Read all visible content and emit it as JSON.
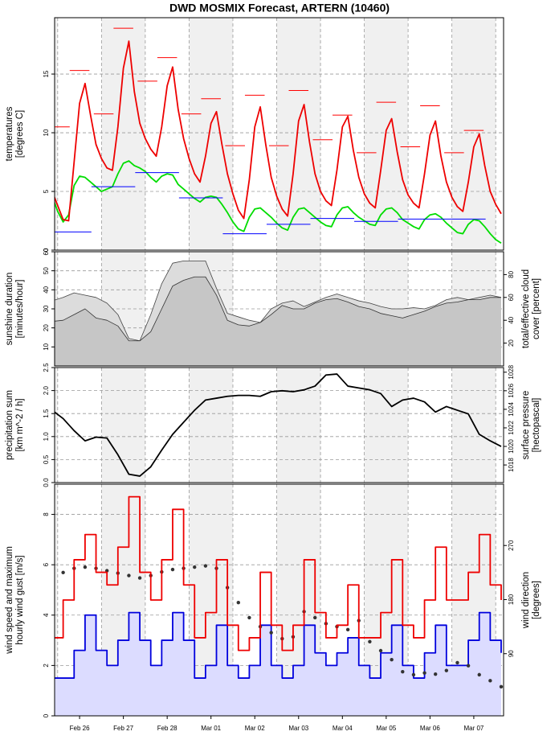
{
  "chart_data": [
    {
      "type": "line",
      "title": "DWD MOSMIX Forecast, ARTERN (10460)",
      "ylabel": [
        "temperatures",
        "[degrees C]"
      ],
      "xlim": [
        -0.07,
        10.18
      ],
      "ylim": [
        0,
        19.8
      ],
      "yticks": [
        0,
        5,
        10,
        15
      ],
      "grid": true,
      "x": [
        -0.125,
        0,
        0.125,
        0.25,
        0.375,
        0.5,
        0.625,
        0.75,
        0.875,
        1,
        1.125,
        1.25,
        1.375,
        1.5,
        1.625,
        1.75,
        1.875,
        2,
        2.125,
        2.25,
        2.375,
        2.5,
        2.625,
        2.75,
        2.875,
        3,
        3.125,
        3.25,
        3.375,
        3.5,
        3.625,
        3.75,
        3.875,
        4,
        4.125,
        4.25,
        4.375,
        4.5,
        4.625,
        4.75,
        4.875,
        5,
        5.125,
        5.25,
        5.375,
        5.5,
        5.625,
        5.75,
        5.875,
        6,
        6.125,
        6.25,
        6.375,
        6.5,
        6.625,
        6.75,
        6.875,
        7,
        7.125,
        7.25,
        7.375,
        7.5,
        7.625,
        7.75,
        7.875,
        8,
        8.125,
        8.25,
        8.375,
        8.5,
        8.625,
        8.75,
        8.875,
        9,
        9.125,
        9.25,
        9.375,
        9.5,
        9.625,
        9.75,
        9.875,
        10,
        10.125
      ],
      "series": [
        {
          "color": "#00dd00",
          "values": [
            4.6,
            3.3,
            2.4,
            3.0,
            5.5,
            6.3,
            6.2,
            5.8,
            5.4,
            5.0,
            5.2,
            5.4,
            6.5,
            7.4,
            7.6,
            7.2,
            7.0,
            6.7,
            6.2,
            5.8,
            6.3,
            6.5,
            6.4,
            5.6,
            5.2,
            4.8,
            4.4,
            4.1,
            4.5,
            4.6,
            4.5,
            3.9,
            3.2,
            2.4,
            1.8,
            1.6,
            2.8,
            3.5,
            3.6,
            3.2,
            2.8,
            2.3,
            1.9,
            1.7,
            2.8,
            3.5,
            3.6,
            3.2,
            2.8,
            2.4,
            2.1,
            2.0,
            3.0,
            3.6,
            3.7,
            3.2,
            2.8,
            2.5,
            2.2,
            2.1,
            3.0,
            3.5,
            3.6,
            3.2,
            2.6,
            2.3,
            2.0,
            1.8,
            2.6,
            3.0,
            3.1,
            2.8,
            2.3,
            1.9,
            1.5,
            1.4,
            2.2,
            2.6,
            2.5,
            2.0,
            1.4,
            0.9,
            0.6
          ]
        },
        {
          "color": "#ee0000",
          "values": [
            5.0,
            3.8,
            2.6,
            2.5,
            7.5,
            12.5,
            14.2,
            11.5,
            9.0,
            7.8,
            7.0,
            6.8,
            10.5,
            15.5,
            17.8,
            13.5,
            10.8,
            9.5,
            8.6,
            8.0,
            10.5,
            14.0,
            15.6,
            12.0,
            9.5,
            7.8,
            6.5,
            5.8,
            8.0,
            10.8,
            11.8,
            9.0,
            6.5,
            4.8,
            3.4,
            2.7,
            6.0,
            10.5,
            12.2,
            9.0,
            6.2,
            4.6,
            3.5,
            2.9,
            6.5,
            11.0,
            12.4,
            9.2,
            6.5,
            5.0,
            4.2,
            3.8,
            6.8,
            10.5,
            11.4,
            8.5,
            6.2,
            4.8,
            4.0,
            3.6,
            6.8,
            10.2,
            11.2,
            8.4,
            6.0,
            4.7,
            4.0,
            3.6,
            6.5,
            9.8,
            11.0,
            8.0,
            5.8,
            4.5,
            3.7,
            3.3,
            5.8,
            8.8,
            9.9,
            7.2,
            5.0,
            3.9,
            3.1
          ]
        },
        {
          "color": "#ff0000",
          "style": "dash",
          "x": [
            0.05,
            0.5,
            1.05,
            1.5,
            2.05,
            2.5,
            3.05,
            3.5,
            4.05,
            4.5,
            5.05,
            5.5,
            6.05,
            6.5,
            7.05,
            7.5,
            8.05,
            8.5,
            9.05,
            9.5
          ],
          "values": [
            10.5,
            15.3,
            11.6,
            18.9,
            14.4,
            16.4,
            11.6,
            12.9,
            8.9,
            13.2,
            8.9,
            13.6,
            9.4,
            11.5,
            8.3,
            12.6,
            8.8,
            12.3,
            8.3,
            10.2
          ]
        },
        {
          "color": "#0000ff",
          "style": "dash",
          "x": [
            0.27,
            1.27,
            2.27,
            3.27,
            4.27,
            5.27,
            6.27,
            7.27,
            8.27,
            9.27
          ],
          "values": [
            1.55,
            5.4,
            6.6,
            4.45,
            1.4,
            2.2,
            2.7,
            2.45,
            2.65,
            2.65
          ]
        }
      ]
    },
    {
      "type": "line",
      "ylabel": [
        "sunshine duration",
        "[minutes/hour]"
      ],
      "y2label": [
        "total/effective cloud",
        "cover [percent]"
      ],
      "xlim": [
        -0.07,
        10.18
      ],
      "ylim": [
        0,
        60
      ],
      "yticks": [
        10,
        20,
        30,
        40,
        50,
        60
      ],
      "grid": true,
      "y2lim": [
        0,
        100
      ],
      "y2ticks": [
        20,
        40,
        60,
        80
      ],
      "x": [
        -0.125,
        0.125,
        0.375,
        0.625,
        0.875,
        1.125,
        1.375,
        1.625,
        1.875,
        2.125,
        2.375,
        2.625,
        2.875,
        3.125,
        3.375,
        3.625,
        3.875,
        4.125,
        4.375,
        4.625,
        4.875,
        5.125,
        5.375,
        5.625,
        5.875,
        6.125,
        6.375,
        6.625,
        6.875,
        7.125,
        7.375,
        7.625,
        7.875,
        8.125,
        8.375,
        8.625,
        8.875,
        9.125,
        9.375,
        9.625,
        9.875,
        10.125
      ],
      "series": [
        {
          "color": "#444444",
          "fill": "#dcdcdc",
          "axis": "y2",
          "values": [
            57,
            60,
            64,
            62,
            60,
            55,
            45,
            24,
            22,
            45,
            72,
            90,
            92,
            92,
            92,
            68,
            46,
            43,
            40,
            38,
            50,
            55,
            57,
            52,
            56,
            60,
            63,
            60,
            57,
            55,
            52,
            50,
            50,
            51,
            50,
            53,
            58,
            60,
            58,
            60,
            62,
            60
          ]
        },
        {
          "color": "#333333",
          "fill": "#c6c6c6",
          "axis": "y2",
          "values": [
            39,
            40,
            45,
            50,
            42,
            40,
            35,
            22,
            22,
            30,
            50,
            70,
            75,
            78,
            78,
            62,
            40,
            36,
            35,
            38,
            45,
            53,
            50,
            50,
            55,
            58,
            59,
            56,
            52,
            50,
            46,
            44,
            42,
            45,
            48,
            52,
            55,
            56,
            58,
            58,
            60,
            60
          ]
        }
      ]
    },
    {
      "type": "line",
      "ylabel": [
        "precipitation sum",
        "[km m^-2 / h]"
      ],
      "y2label": [
        "surface pressure",
        "[hectopascal]"
      ],
      "xlim": [
        -0.07,
        10.18
      ],
      "ylim": [
        0,
        2.5
      ],
      "yticks": [
        {
          "value": 0,
          "label": "0.0"
        },
        0.5,
        {
          "value": 1,
          "label": "1.0"
        },
        1.5,
        {
          "value": 2,
          "label": "2.0"
        },
        2.5
      ],
      "grid": true,
      "y2lim": [
        1016.1,
        1028.5
      ],
      "y2ticks": [
        1018,
        1020,
        1022,
        1024,
        1026,
        1028
      ],
      "x": [
        -0.125,
        0.125,
        0.375,
        0.625,
        0.875,
        1.125,
        1.375,
        1.625,
        1.875,
        2.125,
        2.375,
        2.625,
        2.875,
        3.125,
        3.375,
        3.625,
        3.875,
        4.125,
        4.375,
        4.625,
        4.875,
        5.125,
        5.375,
        5.625,
        5.875,
        6.125,
        6.375,
        6.625,
        6.875,
        7.125,
        7.375,
        7.625,
        7.875,
        8.125,
        8.375,
        8.625,
        8.875,
        9.125,
        9.375,
        9.625,
        9.875,
        10.125
      ],
      "series": [
        {
          "color": "#000000",
          "axis": "y2",
          "values": [
            1023.9,
            1023.0,
            1021.7,
            1020.6,
            1021.0,
            1020.9,
            1019.1,
            1017.0,
            1016.8,
            1017.8,
            1019.6,
            1021.3,
            1022.6,
            1023.9,
            1025.0,
            1025.2,
            1025.4,
            1025.5,
            1025.5,
            1025.4,
            1025.9,
            1026.0,
            1025.9,
            1026.1,
            1026.5,
            1027.7,
            1027.8,
            1026.5,
            1026.3,
            1026.1,
            1025.7,
            1024.3,
            1025.0,
            1025.2,
            1024.8,
            1023.7,
            1024.3,
            1023.9,
            1023.5,
            1021.3,
            1020.6,
            1020.0
          ]
        }
      ]
    },
    {
      "type": "line",
      "ylabel": [
        "wind speed and maximum",
        "hourly wind gust [m/s]"
      ],
      "y2label": [
        "wind direction",
        "[degrees]"
      ],
      "xlim": [
        -0.07,
        10.18
      ],
      "ylim": [
        0,
        9.2
      ],
      "yticks": [
        0,
        2,
        4,
        6,
        8
      ],
      "grid": true,
      "y2lim": [
        -13.4,
        372
      ],
      "y2ticks": [
        90,
        180,
        270
      ],
      "xticks": [
        {
          "value": 0.5,
          "label": "Feb 26"
        },
        {
          "value": 1.5,
          "label": "Feb 27"
        },
        {
          "value": 2.5,
          "label": "Feb 28"
        },
        {
          "value": 3.5,
          "label": "Mar 01"
        },
        {
          "value": 4.5,
          "label": "Mar 02"
        },
        {
          "value": 5.5,
          "label": "Mar 03"
        },
        {
          "value": 6.5,
          "label": "Mar 04"
        },
        {
          "value": 7.5,
          "label": "Mar 05"
        },
        {
          "value": 8.5,
          "label": "Mar 06"
        },
        {
          "value": 9.5,
          "label": "Mar 07"
        }
      ],
      "x": [
        -0.125,
        0.125,
        0.375,
        0.625,
        0.875,
        1.125,
        1.375,
        1.625,
        1.875,
        2.125,
        2.375,
        2.625,
        2.875,
        3.125,
        3.375,
        3.625,
        3.875,
        4.125,
        4.375,
        4.625,
        4.875,
        5.125,
        5.375,
        5.625,
        5.875,
        6.125,
        6.375,
        6.625,
        6.875,
        7.125,
        7.375,
        7.625,
        7.875,
        8.125,
        8.375,
        8.625,
        8.875,
        9.125,
        9.375,
        9.625,
        9.875,
        10.125
      ],
      "series": [
        {
          "color": "#0000dd",
          "fill": "#dcdcff",
          "step": true,
          "values": [
            1.5,
            1.5,
            2.6,
            4.0,
            2.6,
            2.0,
            3.0,
            4.1,
            3.0,
            2.0,
            3.0,
            4.1,
            3.0,
            1.5,
            2.0,
            3.6,
            2.0,
            1.5,
            2.0,
            3.6,
            2.0,
            1.5,
            2.0,
            3.6,
            2.5,
            2.0,
            2.5,
            3.1,
            2.0,
            1.5,
            2.5,
            3.6,
            2.0,
            1.5,
            2.5,
            3.6,
            2.0,
            2.0,
            3.0,
            4.1,
            3.0,
            2.5
          ]
        },
        {
          "color": "#333333",
          "marker": "point",
          "axis": "y2",
          "values": [
            214,
            225,
            232,
            234,
            232,
            228,
            224,
            220,
            216,
            220,
            226,
            230,
            232,
            234,
            236,
            232,
            200,
            175,
            150,
            135,
            125,
            115,
            118,
            160,
            150,
            140,
            135,
            130,
            145,
            110,
            95,
            80,
            60,
            55,
            58,
            56,
            62,
            75,
            70,
            55,
            45,
            35
          ]
        },
        {
          "color": "#ee0000",
          "step": true,
          "values": [
            3.1,
            4.6,
            6.2,
            7.2,
            5.7,
            5.2,
            6.7,
            8.7,
            5.7,
            4.6,
            6.2,
            8.2,
            5.2,
            3.1,
            4.1,
            6.2,
            3.6,
            2.6,
            3.1,
            5.7,
            3.6,
            2.6,
            3.6,
            6.2,
            4.1,
            3.1,
            3.6,
            5.2,
            3.1,
            3.1,
            4.1,
            6.2,
            3.6,
            3.1,
            4.6,
            6.7,
            4.6,
            4.6,
            5.7,
            7.2,
            5.2,
            4.6
          ]
        }
      ]
    }
  ]
}
